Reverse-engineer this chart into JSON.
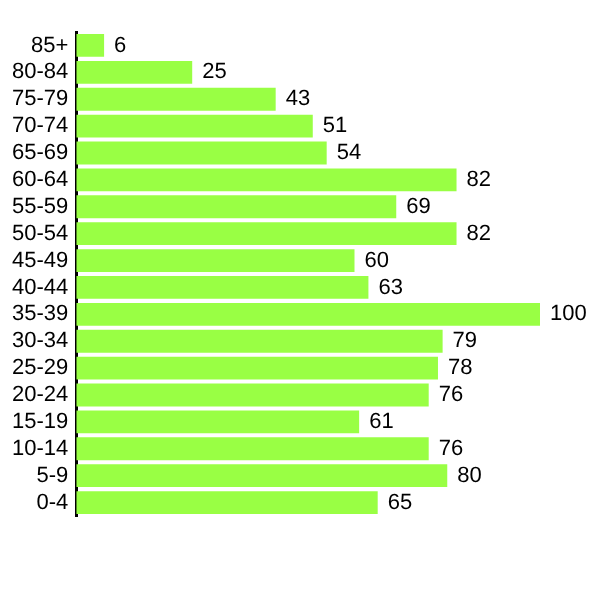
{
  "chart_data": {
    "type": "bar",
    "orientation": "horizontal",
    "categories": [
      "85+",
      "80-84",
      "75-79",
      "70-74",
      "65-69",
      "60-64",
      "55-59",
      "50-54",
      "45-49",
      "40-44",
      "35-39",
      "30-34",
      "25-29",
      "20-24",
      "15-19",
      "10-14",
      "5-9",
      "0-4"
    ],
    "values": [
      6,
      25,
      43,
      51,
      54,
      82,
      69,
      82,
      60,
      63,
      100,
      79,
      78,
      76,
      61,
      76,
      80,
      65
    ],
    "color": "#99ff44",
    "data_labels": true
  }
}
